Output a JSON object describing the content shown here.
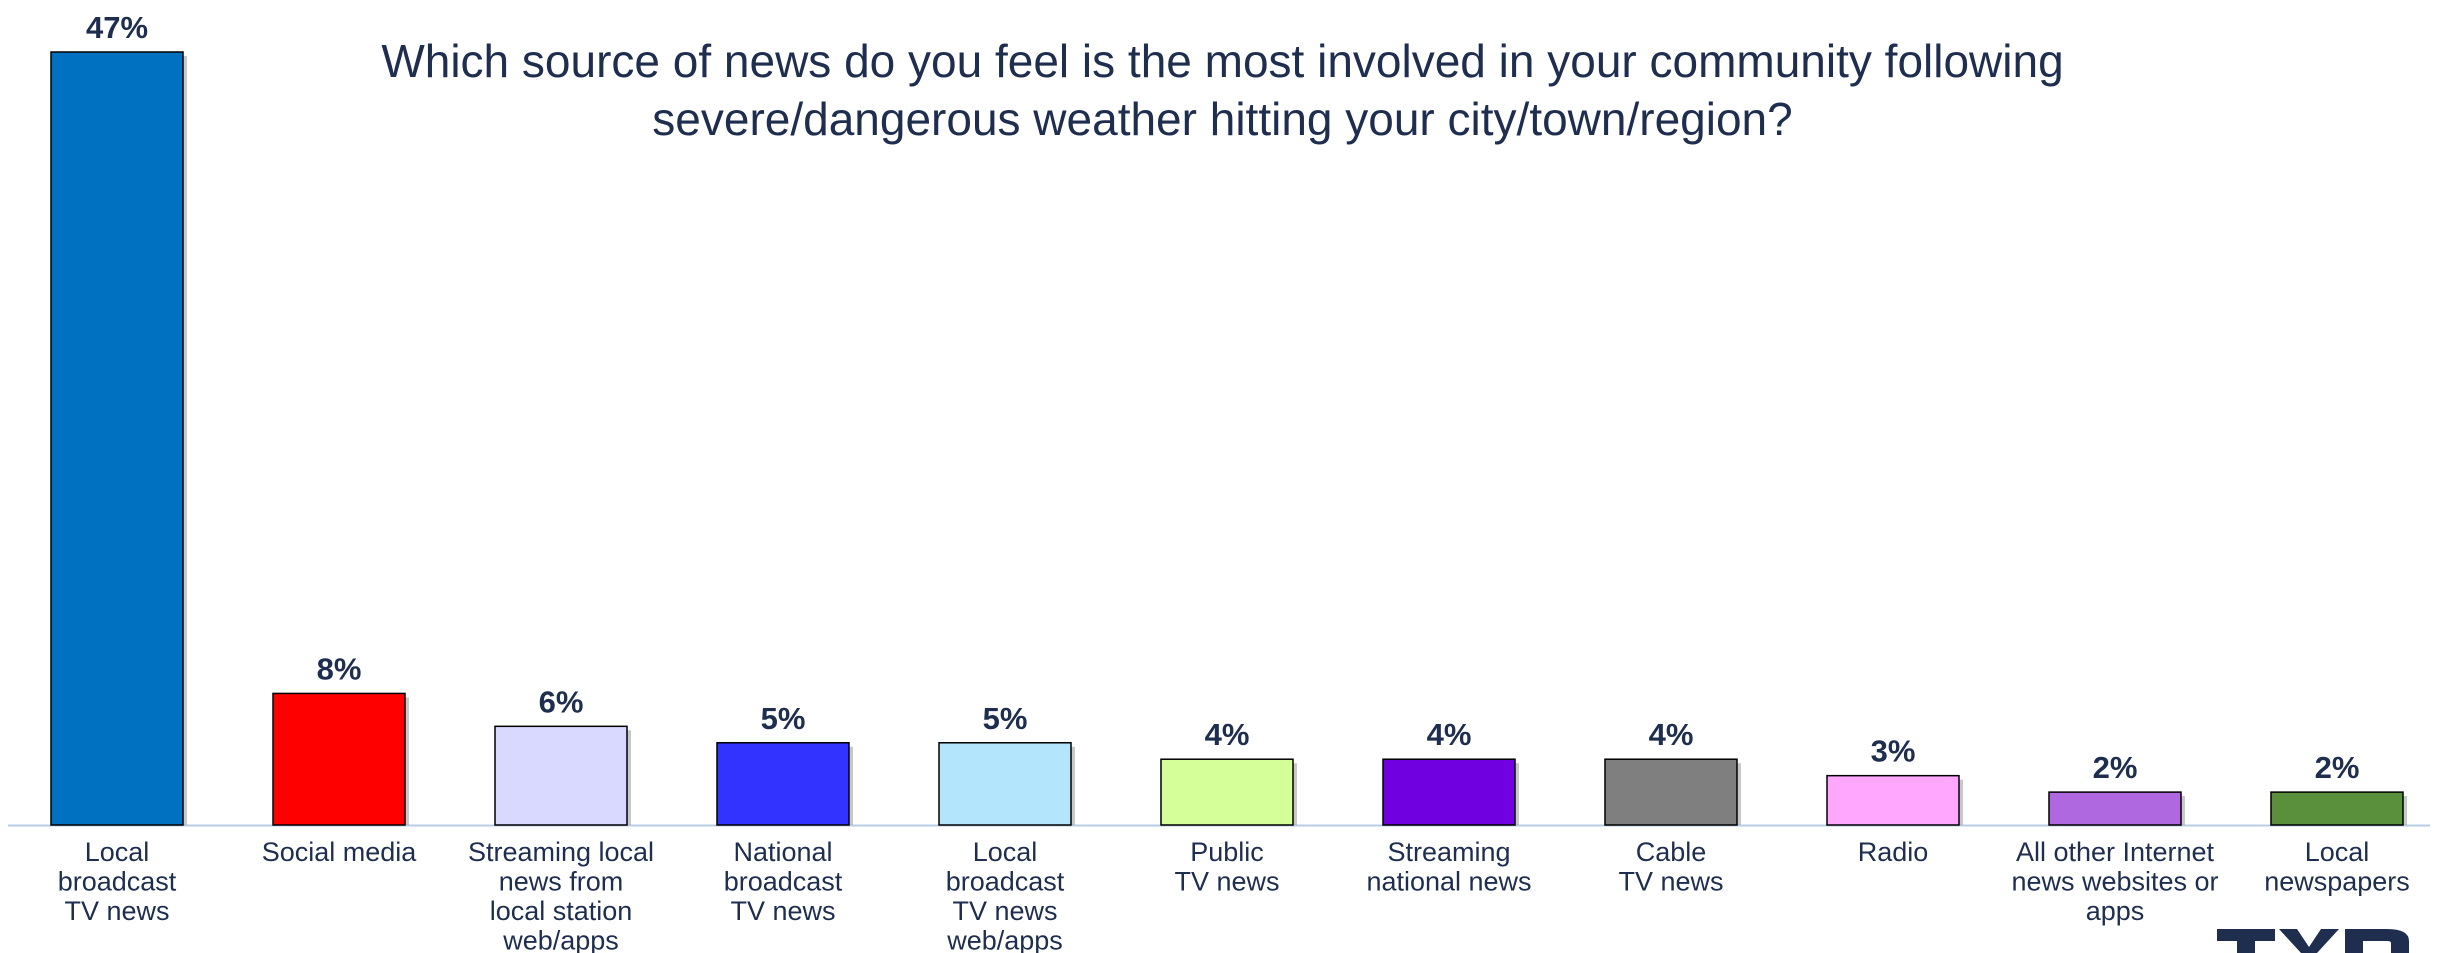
{
  "chart_data": {
    "type": "bar",
    "title": "Which source of news do you feel is the most involved in your community following severe/dangerous weather hitting your city/town/region?",
    "xlabel": "",
    "ylabel": "",
    "ylim": [
      0,
      47
    ],
    "grid": false,
    "legend": "none",
    "value_suffix": "%",
    "categories": [
      "Local broadcast TV news",
      "Social media",
      "Streaming local news from local station web/apps",
      "National broadcast TV news",
      "Local broadcast TV news web/apps",
      "Public TV news",
      "Streaming national news",
      "Cable TV news",
      "Radio",
      "All other Internet news websites or apps",
      "Local newspapers"
    ],
    "values": [
      47,
      8,
      6,
      5,
      5,
      4,
      4,
      4,
      3,
      2,
      2
    ],
    "value_labels": [
      "47%",
      "8%",
      "6%",
      "5%",
      "5%",
      "4%",
      "4%",
      "4%",
      "3%",
      "2%",
      "2%"
    ],
    "category_label_lines": [
      [
        "Local",
        "broadcast",
        "TV news"
      ],
      [
        "Social media"
      ],
      [
        "Streaming local",
        "news from",
        "local station",
        "web/apps"
      ],
      [
        "National",
        "broadcast",
        "TV news"
      ],
      [
        "Local",
        "broadcast",
        "TV news",
        "web/apps"
      ],
      [
        "Public",
        "TV news"
      ],
      [
        "Streaming",
        "national news"
      ],
      [
        "Cable",
        "TV news"
      ],
      [
        "Radio"
      ],
      [
        "All other Internet",
        "news websites or",
        "apps"
      ],
      [
        "Local",
        "newspapers"
      ]
    ],
    "colors": [
      "#0070c0",
      "#ff0000",
      "#d9d9ff",
      "#3333ff",
      "#b3e5fc",
      "#d4ff99",
      "#7000e0",
      "#7f7f7f",
      "#ffa6ff",
      "#b068e0",
      "#5a8f3c"
    ]
  }
}
